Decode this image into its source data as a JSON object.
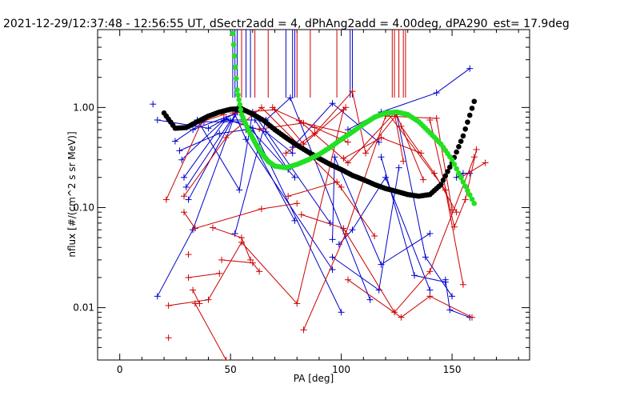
{
  "chart_data": {
    "type": "scatter",
    "title": "2021-12-29/12:37:48 - 12:56:55 UT, dSectr2add = 4, dPhAng2add = 4.00deg, dPA290_est=  17.9deg",
    "xlabel": "PA [deg]",
    "ylabel": "nflux [#/(cm^2 s sr MeV)]",
    "xlim": [
      -10,
      185
    ],
    "ylim": [
      0.003,
      6.0
    ],
    "yscale": "log",
    "grid": false,
    "x_ticks": [
      0,
      50,
      100,
      150
    ],
    "x_tick_labels": [
      "0",
      "50",
      "100",
      "150"
    ],
    "y_ticks": [
      0.01,
      0.1,
      1.0
    ],
    "y_tick_labels": [
      "0.01",
      "0.10",
      "1.00"
    ],
    "colors": {
      "blue": "#0000cc",
      "red": "#cc0000",
      "black": "#000000",
      "green": "#22e022"
    },
    "series": [
      {
        "color": "blue",
        "segments": [
          [
            [
              15,
              1.08
            ]
          ],
          [
            [
              17,
              0.75
            ],
            [
              40,
              0.62
            ],
            [
              53,
              0.9
            ]
          ],
          [
            [
              17,
              0.013
            ],
            [
              33,
              0.06
            ],
            [
              53,
              0.97
            ]
          ],
          [
            [
              25,
              0.46
            ],
            [
              38,
              0.72
            ],
            [
              56,
              0.72
            ],
            [
              79,
              0.2
            ]
          ],
          [
            [
              27,
              0.37
            ],
            [
              45,
              0.55
            ],
            [
              57,
              0.6
            ],
            [
              79,
              0.074
            ]
          ],
          [
            [
              28,
              0.3
            ],
            [
              47,
              0.75
            ],
            [
              61,
              0.75
            ],
            [
              76,
              0.24
            ]
          ],
          [
            [
              29,
              0.2
            ],
            [
              48,
              0.77
            ],
            [
              60,
              0.62
            ],
            [
              100,
              0.009
            ]
          ],
          [
            [
              30,
              0.16
            ],
            [
              50,
              0.74
            ],
            [
              66,
              0.57
            ],
            [
              78,
              0.35
            ]
          ],
          [
            [
              31,
              0.12
            ],
            [
              52,
              0.85
            ],
            [
              57,
              0.48
            ],
            [
              96,
              0.024
            ]
          ],
          [
            [
              33,
              0.6
            ],
            [
              55,
              0.92
            ],
            [
              59,
              0.58
            ]
          ],
          [
            [
              35,
              0.75
            ],
            [
              54,
              0.15
            ],
            [
              60,
              0.9
            ],
            [
              95,
              0.07
            ]
          ],
          [
            [
              52,
              0.055
            ],
            [
              66,
              0.75
            ],
            [
              77,
              1.25
            ],
            [
              113,
              0.012
            ]
          ],
          [
            [
              78,
              0.4
            ],
            [
              96,
              1.1
            ],
            [
              117,
              0.45
            ]
          ],
          [
            [
              96,
              0.048
            ],
            [
              97,
              0.32
            ],
            [
              118,
              0.027
            ],
            [
              140,
              0.055
            ]
          ],
          [
            [
              96,
              0.032
            ],
            [
              117,
              0.015
            ],
            [
              126,
              0.25
            ]
          ],
          [
            [
              99,
              0.043
            ],
            [
              105,
              0.06
            ],
            [
              120,
              0.2
            ],
            [
              140,
              0.015
            ]
          ],
          [
            [
              103,
              0.6
            ],
            [
              118,
              0.9
            ],
            [
              143,
              1.4
            ],
            [
              158,
              2.45
            ]
          ],
          [
            [
              118,
              0.32
            ],
            [
              133,
              0.021
            ],
            [
              147,
              0.018
            ]
          ],
          [
            [
              125,
              0.85
            ],
            [
              138,
              0.032
            ],
            [
              150,
              0.013
            ]
          ],
          [
            [
              147,
              0.019
            ],
            [
              149,
              0.0095
            ],
            [
              158,
              0.008
            ]
          ],
          [
            [
              152,
              0.2
            ],
            [
              155,
              0.22
            ],
            [
              158,
              0.22
            ]
          ]
        ]
      },
      {
        "color": "red",
        "segments": [
          [
            [
              21,
              0.12
            ],
            [
              37,
              0.72
            ],
            [
              47,
              0.85
            ]
          ],
          [
            [
              22,
              0.0105
            ],
            [
              40,
              0.012
            ],
            [
              55,
              0.045
            ],
            [
              80,
              0.011
            ],
            [
              101,
              0.95
            ]
          ],
          [
            [
              22,
              0.005
            ]
          ],
          [
            [
              29,
              0.13
            ],
            [
              48,
              0.5
            ],
            [
              64,
              1.0
            ],
            [
              100,
              0.16
            ]
          ],
          [
            [
              29,
              0.09
            ],
            [
              34,
              0.062
            ],
            [
              64,
              0.097
            ],
            [
              80,
              0.11
            ]
          ],
          [
            [
              31,
              0.034
            ]
          ],
          [
            [
              31,
              0.02
            ],
            [
              45,
              0.022
            ]
          ],
          [
            [
              33,
              0.015
            ],
            [
              36,
              0.011
            ]
          ],
          [
            [
              34,
              0.011
            ],
            [
              48,
              0.003
            ]
          ],
          [
            [
              42,
              0.063
            ],
            [
              55,
              0.05
            ],
            [
              59,
              0.03
            ]
          ],
          [
            [
              46,
              0.03
            ],
            [
              60,
              0.028
            ],
            [
              63,
              0.023
            ]
          ],
          [
            [
              51,
              0.88
            ],
            [
              70,
              0.95
            ],
            [
              88,
              0.63
            ],
            [
              103,
              0.45
            ]
          ],
          [
            [
              63,
              0.61
            ],
            [
              83,
              0.7
            ],
            [
              103,
              0.55
            ]
          ],
          [
            [
              69,
              1.0
            ],
            [
              83,
              0.43
            ],
            [
              102,
              1.0
            ]
          ],
          [
            [
              75,
              0.35
            ],
            [
              88,
              0.55
            ],
            [
              105,
              1.45
            ],
            [
              111,
              0.35
            ],
            [
              125,
              0.85
            ],
            [
              137,
              0.19
            ]
          ],
          [
            [
              76,
              0.13
            ],
            [
              98,
              0.18
            ],
            [
              115,
              0.052
            ]
          ],
          [
            [
              81,
              0.74
            ],
            [
              103,
              0.28
            ],
            [
              124,
              0.88
            ],
            [
              128,
              0.29
            ]
          ],
          [
            [
              82,
              0.085
            ],
            [
              101,
              0.062
            ],
            [
              124,
              0.009
            ],
            [
              140,
              0.023
            ],
            [
              160,
              0.32
            ]
          ],
          [
            [
              83,
              0.006
            ],
            [
              102,
              0.055
            ],
            [
              120,
              0.82
            ],
            [
              143,
              0.78
            ],
            [
              150,
              0.095
            ]
          ],
          [
            [
              101,
              0.31
            ],
            [
              118,
              0.5
            ],
            [
              136,
              0.35
            ]
          ],
          [
            [
              103,
              0.019
            ],
            [
              127,
              0.008
            ],
            [
              140,
              0.013
            ],
            [
              159,
              0.008
            ]
          ],
          [
            [
              121,
              0.88
            ],
            [
              147,
              0.15
            ],
            [
              155,
              0.017
            ]
          ],
          [
            [
              127,
              0.65
            ],
            [
              142,
              0.22
            ],
            [
              152,
              0.09
            ]
          ],
          [
            [
              140,
              0.75
            ],
            [
              151,
              0.064
            ],
            [
              156,
              0.12
            ],
            [
              161,
              0.38
            ]
          ],
          [
            [
              154,
              0.2
            ],
            [
              165,
              0.28
            ]
          ]
        ]
      }
    ],
    "vertical_lines": [
      {
        "color": "blue",
        "x": [
          51,
          52,
          53,
          57,
          59,
          75,
          78,
          79,
          104,
          105
        ]
      },
      {
        "color": "red",
        "x": [
          55,
          61,
          67,
          80,
          86,
          98,
          123,
          124,
          126,
          128,
          129
        ]
      }
    ],
    "fits": [
      {
        "color": "black",
        "x": [
          20,
          25,
          30,
          35,
          40,
          45,
          50,
          55,
          60,
          65,
          70,
          75,
          80,
          85,
          90,
          95,
          100,
          105,
          110,
          115,
          120,
          125,
          130,
          135,
          140,
          145,
          150,
          155,
          160
        ],
        "y": [
          0.88,
          0.62,
          0.63,
          0.72,
          0.82,
          0.9,
          0.96,
          0.97,
          0.86,
          0.74,
          0.6,
          0.5,
          0.42,
          0.36,
          0.31,
          0.27,
          0.24,
          0.21,
          0.19,
          0.17,
          0.155,
          0.145,
          0.135,
          0.13,
          0.135,
          0.17,
          0.28,
          0.52,
          1.15
        ]
      },
      {
        "color": "green",
        "x": [
          51,
          53,
          55,
          58,
          61,
          64,
          67,
          70,
          75,
          80,
          85,
          90,
          95,
          100,
          105,
          110,
          115,
          120,
          125,
          130,
          135,
          140,
          145,
          150,
          155,
          160
        ],
        "y": [
          5.5,
          1.5,
          0.85,
          0.6,
          0.45,
          0.35,
          0.29,
          0.26,
          0.25,
          0.27,
          0.3,
          0.34,
          0.4,
          0.48,
          0.57,
          0.68,
          0.8,
          0.88,
          0.9,
          0.85,
          0.72,
          0.56,
          0.43,
          0.3,
          0.18,
          0.11
        ]
      }
    ]
  }
}
